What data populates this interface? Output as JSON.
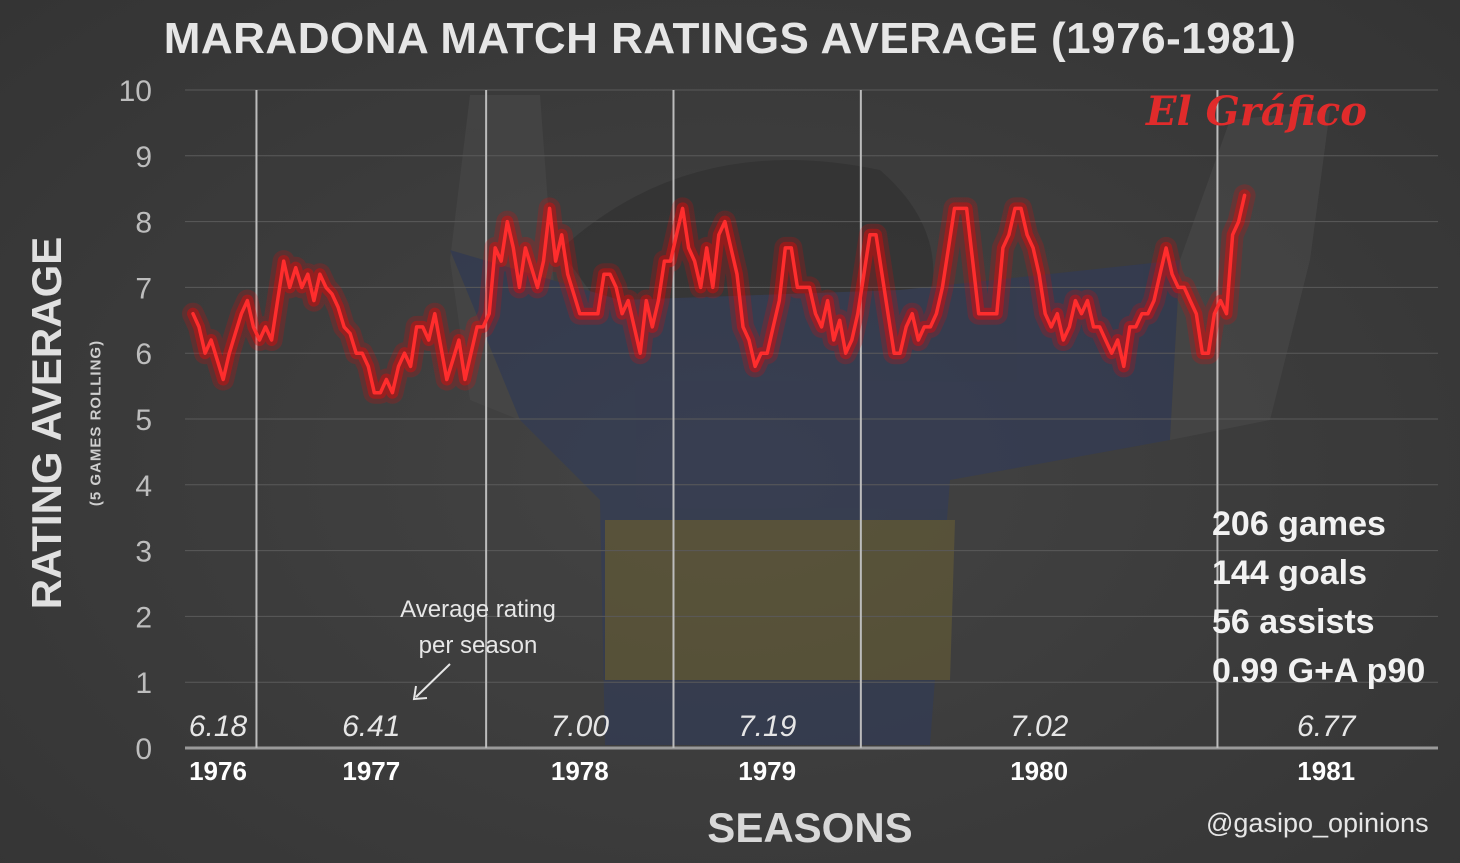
{
  "title": "MARADONA MATCH RATINGS AVERAGE (1976-1981)",
  "logo_text": "El Gráfico",
  "stats": [
    "206 games",
    "144 goals",
    "56 assists",
    "0.99 G+A p90"
  ],
  "annotation": {
    "line1": "Average rating",
    "line2": "per season"
  },
  "credit": "@gasipo_opinions",
  "colors": {
    "background": "#3a3a3a",
    "line": "#ff2d2d",
    "glow": "#ff0000",
    "text": "#e6e6e6",
    "logo": "#e02b2b"
  },
  "chart_data": {
    "type": "line",
    "title": "MARADONA MATCH RATINGS AVERAGE (1976-1981)",
    "ylabel": "RATING AVERAGE",
    "ylabel_sub": "(5 GAMES ROLLING)",
    "xlabel": "SEASONS",
    "ylim": [
      0,
      10
    ],
    "yticks": [
      0,
      1,
      2,
      3,
      4,
      5,
      6,
      7,
      8,
      9,
      10
    ],
    "grid": true,
    "x_range": [
      1,
      206
    ],
    "seasons": [
      {
        "label": "1976",
        "average": "6.18",
        "start_game": 1,
        "end_game": 11
      },
      {
        "label": "1977",
        "average": "6.41",
        "start_game": 12,
        "end_game": 49
      },
      {
        "label": "1978",
        "average": "7.00",
        "start_game": 50,
        "end_game": 80
      },
      {
        "label": "1979",
        "average": "7.19",
        "start_game": 81,
        "end_game": 111
      },
      {
        "label": "1980",
        "average": "7.02",
        "start_game": 112,
        "end_game": 170
      },
      {
        "label": "1981",
        "average": "6.77",
        "start_game": 171,
        "end_game": 206
      }
    ],
    "series": [
      {
        "values": [
          6.6,
          6.4,
          6.0,
          6.2,
          5.9,
          5.6,
          6.0,
          6.3,
          6.6,
          6.8,
          6.4,
          6.2,
          6.4,
          6.2,
          6.8,
          7.4,
          7.0,
          7.3,
          7.0,
          7.2,
          6.8,
          7.2,
          7.0,
          6.9,
          6.7,
          6.4,
          6.3,
          6.0,
          6.0,
          5.8,
          5.4,
          5.4,
          5.6,
          5.4,
          5.8,
          6.0,
          5.8,
          6.4,
          6.4,
          6.2,
          6.6,
          6.1,
          5.6,
          5.9,
          6.2,
          5.6,
          6.0,
          6.4,
          6.4,
          6.6,
          7.6,
          7.4,
          8.0,
          7.6,
          7.0,
          7.6,
          7.3,
          7.0,
          7.4,
          8.2,
          7.4,
          7.8,
          7.2,
          6.9,
          6.6,
          6.6,
          6.6,
          6.6,
          7.2,
          7.2,
          7.0,
          6.6,
          6.8,
          6.4,
          6.0,
          6.8,
          6.4,
          6.8,
          7.4,
          7.4,
          7.8,
          8.2,
          7.6,
          7.4,
          7.0,
          7.6,
          7.0,
          7.8,
          8.0,
          7.6,
          7.2,
          6.4,
          6.2,
          5.8,
          6.0,
          6.0,
          6.4,
          6.8,
          7.6,
          7.6,
          7.0,
          7.0,
          7.0,
          6.6,
          6.4,
          6.8,
          6.2,
          6.5,
          6.0,
          6.2,
          6.6,
          7.2,
          7.8,
          7.8,
          7.2,
          6.6,
          6.0,
          6.0,
          6.4,
          6.6,
          6.2,
          6.4,
          6.4,
          6.6,
          7.0,
          7.6,
          8.2,
          8.2,
          8.2,
          7.4,
          6.6,
          6.6,
          6.6,
          6.6,
          7.6,
          7.8,
          8.2,
          8.2,
          7.8,
          7.6,
          7.2,
          6.6,
          6.4,
          6.6,
          6.2,
          6.4,
          6.8,
          6.6,
          6.8,
          6.4,
          6.4,
          6.2,
          6.0,
          6.2,
          5.8,
          6.4,
          6.4,
          6.6,
          6.6,
          6.8,
          7.2,
          7.6,
          7.2,
          7.0,
          7.0,
          6.8,
          6.6,
          6.0,
          6.0,
          6.6,
          6.8,
          6.6,
          7.8,
          8.0,
          8.4
        ]
      }
    ]
  }
}
